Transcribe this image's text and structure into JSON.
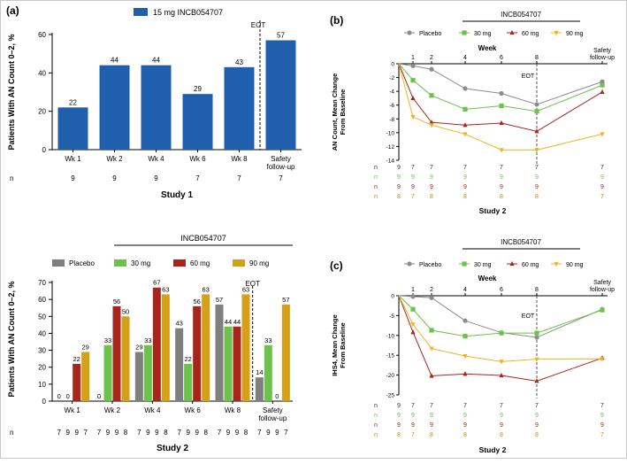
{
  "chart_data": [
    {
      "id": "a",
      "panel_label": "(a)",
      "type": "bar",
      "legend": [
        "15 mg INCB054707"
      ],
      "ylabel": "Patients With AN Count 0–2, %",
      "ylim": [
        0,
        60
      ],
      "yticks": [
        0,
        20,
        40,
        60
      ],
      "categories": [
        "Wk 1",
        "Wk 2",
        "Wk 4",
        "Wk 6",
        "Wk 8",
        "Safety follow-up"
      ],
      "values": [
        22,
        44,
        44,
        29,
        43,
        57
      ],
      "data_labels": [
        "22",
        "44",
        "44",
        "29",
        "43",
        "57"
      ],
      "n_label": "n",
      "n_values": [
        "9",
        "9",
        "9",
        "7",
        "7",
        "7"
      ],
      "eot_label": "EOT",
      "study_label": "Study 1",
      "colors": {
        "bar": "#1f5fae"
      }
    },
    {
      "id": "b",
      "panel_label": "(b)",
      "type": "line",
      "top_label": "INCB054707",
      "xlabel": "Week",
      "ylabel": "AN Count, Mean Change From Baseline",
      "ylim": [
        -14,
        0
      ],
      "yticks": [
        0,
        -2,
        -4,
        -6,
        -8,
        -10,
        -12,
        -14
      ],
      "xticks": [
        "1",
        "2",
        "4",
        "6",
        "8",
        "Safety follow-up"
      ],
      "x": [
        0,
        1,
        2,
        4,
        6,
        8,
        12
      ],
      "series": [
        {
          "name": "Placebo",
          "color": "#8c8c8c",
          "marker": "circle",
          "values": [
            0,
            -0.3,
            -0.8,
            -3.6,
            -4.3,
            -5.9,
            -2.6
          ]
        },
        {
          "name": "30 mg",
          "color": "#6cc24a",
          "marker": "square",
          "values": [
            0,
            -2.4,
            -4.6,
            -6.6,
            -6.1,
            -6.9,
            -3.1
          ]
        },
        {
          "name": "60 mg",
          "color": "#a8251c",
          "marker": "triangle",
          "values": [
            0,
            -5.0,
            -8.5,
            -8.9,
            -8.6,
            -9.8,
            -4.1
          ]
        },
        {
          "name": "90 mg",
          "color": "#f0b323",
          "marker": "triangle-down",
          "values": [
            0,
            -7.7,
            -8.9,
            -10.2,
            -12.5,
            -12.5,
            -10.2
          ]
        }
      ],
      "eot_label": "EOT",
      "n_rows": [
        {
          "label": "n",
          "color": "#333333",
          "values": [
            "9",
            "7",
            "7",
            "7",
            "7",
            "7",
            "7"
          ]
        },
        {
          "label": "n",
          "color": "#6cc24a",
          "values": [
            "9",
            "9",
            "9",
            "9",
            "9",
            "9",
            "9"
          ]
        },
        {
          "label": "n",
          "color": "#a8251c",
          "values": [
            "9",
            "9",
            "9",
            "9",
            "9",
            "9",
            "9"
          ]
        },
        {
          "label": "n",
          "color": "#c98a00",
          "values": [
            "8",
            "7",
            "8",
            "8",
            "8",
            "8",
            "7"
          ]
        }
      ],
      "study_label": "Study 2"
    },
    {
      "id": "grouped",
      "type": "bar",
      "top_label": "INCB054707",
      "legend": [
        "Placebo",
        "30 mg",
        "60 mg",
        "90 mg"
      ],
      "ylabel": "Patients With AN Count 0–2, %",
      "ylim": [
        0,
        70
      ],
      "yticks": [
        0,
        10,
        20,
        30,
        40,
        50,
        60,
        70
      ],
      "categories": [
        "Wk 1",
        "Wk 2",
        "Wk 4",
        "Wk 6",
        "Wk 8",
        "Safety follow-up"
      ],
      "series": [
        {
          "name": "Placebo",
          "color": "#7f7f7f",
          "values": [
            0,
            0,
            29,
            43,
            57,
            14
          ],
          "labels": [
            "0",
            "0",
            "29",
            "43",
            "57",
            "14"
          ]
        },
        {
          "name": "30 mg",
          "color": "#6cc24a",
          "values": [
            0,
            33,
            33,
            22,
            44,
            33
          ],
          "labels": [
            "0",
            "33",
            "33",
            "22",
            "44",
            "33"
          ]
        },
        {
          "name": "60 mg",
          "color": "#a8251c",
          "values": [
            22,
            56,
            67,
            56,
            44,
            0
          ],
          "labels": [
            "22",
            "56",
            "67",
            "56",
            "44",
            "0"
          ]
        },
        {
          "name": "90 mg",
          "color": "#d4a017",
          "values": [
            29,
            50,
            63,
            63,
            63,
            57
          ],
          "labels": [
            "29",
            "50",
            "63",
            "63",
            "63",
            "57"
          ]
        }
      ],
      "eot_label": "EOT",
      "n_label": "n",
      "n_values": [
        [
          "7",
          "9",
          "9",
          "7"
        ],
        [
          "7",
          "9",
          "9",
          "8"
        ],
        [
          "7",
          "9",
          "9",
          "8"
        ],
        [
          "7",
          "9",
          "9",
          "8"
        ],
        [
          "7",
          "9",
          "9",
          "8"
        ],
        [
          "7",
          "9",
          "9",
          "7"
        ]
      ],
      "study_label": "Study 2"
    },
    {
      "id": "c",
      "panel_label": "(c)",
      "type": "line",
      "top_label": "INCB054707",
      "xlabel": "Week",
      "ylabel": "IHS4, Mean Change From Baseline",
      "ylim": [
        -25,
        0
      ],
      "yticks": [
        0,
        -5,
        -10,
        -15,
        -20,
        -25
      ],
      "xticks": [
        "1",
        "2",
        "4",
        "6",
        "8",
        "Safety follow-up"
      ],
      "x": [
        0,
        1,
        2,
        4,
        6,
        8,
        12
      ],
      "series": [
        {
          "name": "Placebo",
          "color": "#8c8c8c",
          "marker": "circle",
          "values": [
            0,
            -0.2,
            -0.5,
            -6.3,
            -9.3,
            -10.5,
            -3.4
          ]
        },
        {
          "name": "30 mg",
          "color": "#6cc24a",
          "marker": "square",
          "values": [
            0,
            -3.4,
            -8.7,
            -10.2,
            -9.4,
            -9.4,
            -3.6
          ]
        },
        {
          "name": "60 mg",
          "color": "#a8251c",
          "marker": "triangle",
          "values": [
            0,
            -9.2,
            -20.2,
            -19.7,
            -20.1,
            -21.5,
            -15.7
          ]
        },
        {
          "name": "90 mg",
          "color": "#f0b323",
          "marker": "triangle-down",
          "values": [
            0,
            -7.2,
            -13.3,
            -15.2,
            -16.6,
            -16.0,
            -15.9
          ]
        }
      ],
      "eot_label": "EOT",
      "n_rows": [
        {
          "label": "n",
          "color": "#333333",
          "values": [
            "9",
            "7",
            "7",
            "7",
            "7",
            "7",
            "7"
          ]
        },
        {
          "label": "n",
          "color": "#6cc24a",
          "values": [
            "9",
            "9",
            "9",
            "9",
            "9",
            "9",
            "9"
          ]
        },
        {
          "label": "n",
          "color": "#a8251c",
          "values": [
            "9",
            "9",
            "9",
            "9",
            "9",
            "9",
            "9"
          ]
        },
        {
          "label": "n",
          "color": "#c98a00",
          "values": [
            "8",
            "7",
            "8",
            "8",
            "8",
            "8",
            "7"
          ]
        }
      ],
      "study_label": "Study 2"
    }
  ]
}
